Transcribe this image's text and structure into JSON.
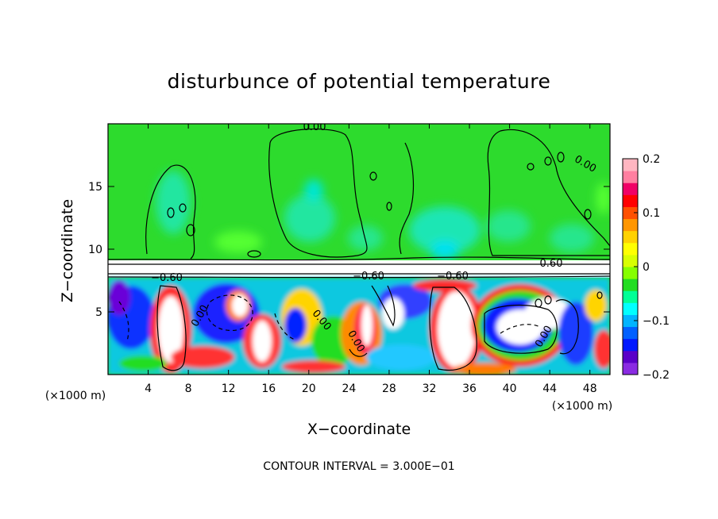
{
  "chart_data": {
    "type": "heatmap",
    "title": "disturbunce of potential temperature",
    "xlabel": "X−coordinate",
    "ylabel": "Z−coordinate",
    "x_unit": "(×1000 m)",
    "y_unit": "(×1000 m)",
    "xlim": [
      0,
      50
    ],
    "ylim": [
      0,
      20
    ],
    "x_ticks": [
      4,
      8,
      12,
      16,
      20,
      24,
      28,
      32,
      36,
      40,
      44,
      48
    ],
    "y_ticks": [
      5,
      10,
      15
    ],
    "colorbar": {
      "min": -0.2,
      "max": 0.2,
      "ticks": [
        0.2,
        0.1,
        0,
        -0.1,
        -0.2
      ],
      "tick_labels": [
        "0.2",
        "0.1",
        "0",
        "−0.1",
        "−0.2"
      ],
      "colors": [
        "#8a2be2",
        "#5a00c8",
        "#0018ff",
        "#0060ff",
        "#00b4ff",
        "#00ffff",
        "#00ff96",
        "#22dd22",
        "#86ff00",
        "#d8ff00",
        "#ffff00",
        "#ffd200",
        "#ff9600",
        "#ff5000",
        "#ff0000",
        "#f00066",
        "#ff7fa0",
        "#ffb6c1"
      ]
    },
    "contour_labels": [
      "0.00",
      "0.00",
      "0.60",
      "−0.60",
      "−0.60",
      "−0.60",
      "0.00",
      "0.00",
      "0.00",
      "0.00"
    ],
    "footnote": "CONTOUR INTERVAL = 3.000E−01",
    "grid": false
  }
}
